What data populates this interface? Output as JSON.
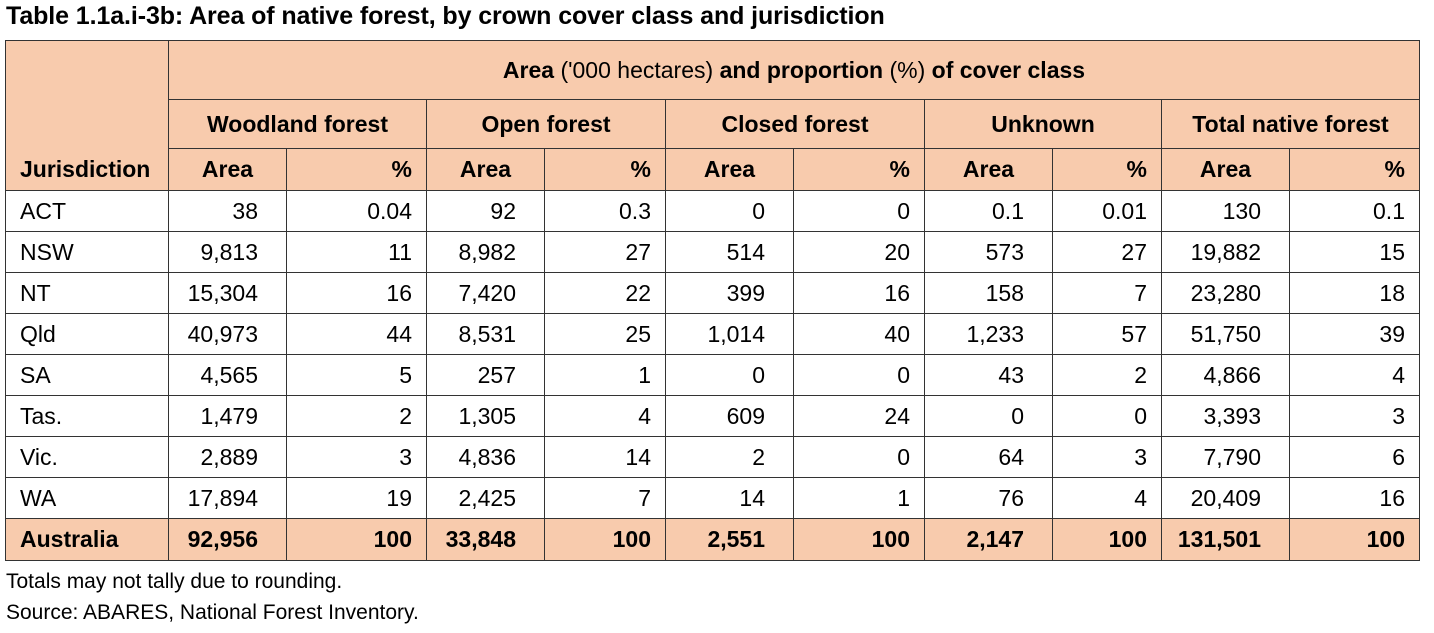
{
  "title": "Table 1.1a.i-3b: Area of native forest, by crown cover class and jurisdiction",
  "header": {
    "group_bold_1": "Area",
    "group_plain_1": " ('000 hectares) ",
    "group_bold_2": "and proportion",
    "group_plain_2": " (%) ",
    "group_bold_3": "of cover class",
    "jurisdiction": "Jurisdiction",
    "classes": [
      "Woodland forest",
      "Open forest",
      "Closed forest",
      "Unknown",
      "Total native forest"
    ],
    "area_label": "Area",
    "pct_label": "%"
  },
  "rows": [
    {
      "name": "ACT",
      "cells": [
        "38",
        "0.04",
        "92",
        "0.3",
        "0",
        "0",
        "0.1",
        "0.01",
        "130",
        "0.1"
      ]
    },
    {
      "name": "NSW",
      "cells": [
        "9,813",
        "11",
        "8,982",
        "27",
        "514",
        "20",
        "573",
        "27",
        "19,882",
        "15"
      ]
    },
    {
      "name": "NT",
      "cells": [
        "15,304",
        "16",
        "7,420",
        "22",
        "399",
        "16",
        "158",
        "7",
        "23,280",
        "18"
      ]
    },
    {
      "name": "Qld",
      "cells": [
        "40,973",
        "44",
        "8,531",
        "25",
        "1,014",
        "40",
        "1,233",
        "57",
        "51,750",
        "39"
      ]
    },
    {
      "name": "SA",
      "cells": [
        "4,565",
        "5",
        "257",
        "1",
        "0",
        "0",
        "43",
        "2",
        "4,866",
        "4"
      ]
    },
    {
      "name": "Tas.",
      "cells": [
        "1,479",
        "2",
        "1,305",
        "4",
        "609",
        "24",
        "0",
        "0",
        "3,393",
        "3"
      ]
    },
    {
      "name": "Vic.",
      "cells": [
        "2,889",
        "3",
        "4,836",
        "14",
        "2",
        "0",
        "64",
        "3",
        "7,790",
        "6"
      ]
    },
    {
      "name": "WA",
      "cells": [
        "17,894",
        "19",
        "2,425",
        "7",
        "14",
        "1",
        "76",
        "4",
        "20,409",
        "16"
      ]
    }
  ],
  "total": {
    "name": "Australia",
    "cells": [
      "92,956",
      "100",
      "33,848",
      "100",
      "2,551",
      "100",
      "2,147",
      "100",
      "131,501",
      "100"
    ]
  },
  "notes": [
    "Totals may not tally due to rounding.",
    "Source: ABARES, National Forest Inventory."
  ],
  "colors": {
    "header_fill": "#f8cbad",
    "border": "#333333"
  }
}
